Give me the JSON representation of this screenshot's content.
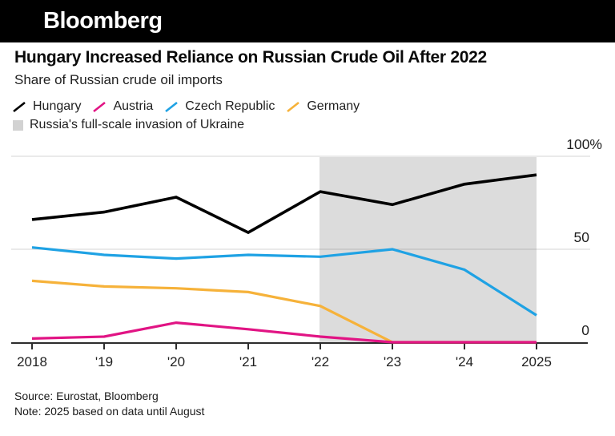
{
  "header": {
    "brand": "Bloomberg"
  },
  "title": "Hungary Increased Reliance on Russian Crude Oil After 2022",
  "subtitle": "Share of Russian crude oil imports",
  "footer": {
    "source": "Source: Eurostat, Bloomberg",
    "note": "Note: 2025 based on data until August"
  },
  "colors": {
    "hungary": "#000000",
    "austria": "#e11484",
    "czech_republic": "#1fa2e4",
    "germany": "#f6b23a",
    "invasion_band": "#dcdcdc",
    "axis": "#2d2d2d",
    "gridline": "rgba(0,0,0,0.13)",
    "tick_text": "#1f1f1f"
  },
  "chart_data": {
    "type": "line",
    "title": "Hungary Increased Reliance on Russian Crude Oil After 2022",
    "subtitle": "Share of Russian crude oil imports",
    "x": [
      2018,
      2019,
      2020,
      2021,
      2022,
      2023,
      2024,
      2025
    ],
    "x_tick_labels": [
      "2018",
      "'19",
      "'20",
      "'21",
      "'22",
      "'23",
      "'24",
      "2025"
    ],
    "ylim": [
      0,
      100
    ],
    "y_ticks": [
      0,
      50,
      100
    ],
    "y_tick_labels": [
      "0",
      "50",
      "100%"
    ],
    "grid": "horizontal",
    "legend_position": "top",
    "series": [
      {
        "name": "Hungary",
        "color": "#000000",
        "values": [
          66,
          70,
          78,
          59,
          81,
          74,
          85,
          90
        ]
      },
      {
        "name": "Austria",
        "color": "#e11484",
        "values": [
          2,
          3,
          10.5,
          7,
          3,
          0,
          0,
          0
        ]
      },
      {
        "name": "Czech Republic",
        "color": "#1fa2e4",
        "values": [
          51,
          47,
          45,
          47,
          46,
          50,
          39,
          14.5
        ]
      },
      {
        "name": "Germany",
        "color": "#f6b23a",
        "values": [
          33,
          30,
          29,
          27,
          19.5,
          0,
          0,
          0
        ]
      }
    ],
    "annotation_band": {
      "label": "Russia's full-scale invasion of Ukraine",
      "x_start": 2022,
      "x_end": 2025,
      "color": "#dcdcdc"
    }
  }
}
